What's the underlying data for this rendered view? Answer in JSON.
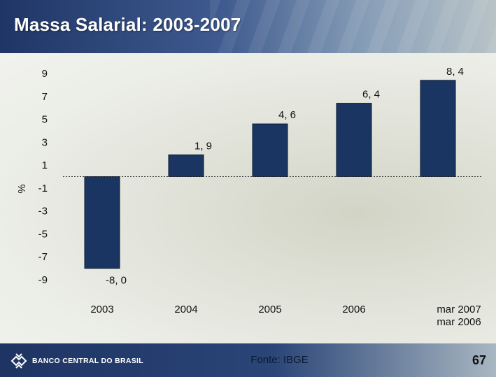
{
  "title": "Massa Salarial: 2003-2007",
  "footer": {
    "bank_name": "BANCO CENTRAL DO BRASIL",
    "source": "Fonte: IBGE",
    "page_number": "67"
  },
  "chart_data": {
    "type": "bar",
    "title": "",
    "ylabel": "%",
    "xlabel": "",
    "categories": [
      "2003",
      "2004",
      "2005",
      "2006",
      "mar 2007\nmar 2006"
    ],
    "values": [
      -8.0,
      1.9,
      4.6,
      6.4,
      8.4
    ],
    "data_labels": [
      "-8, 0",
      "1, 9",
      "4, 6",
      "6, 4",
      "8, 4"
    ],
    "yticks": [
      "9",
      "7",
      "5",
      "3",
      "1",
      "-1",
      "-3",
      "-5",
      "-7",
      "-9"
    ],
    "ylim": [
      -9,
      9
    ],
    "grid": false,
    "legend": "none",
    "bar_color": "#1b3562"
  }
}
